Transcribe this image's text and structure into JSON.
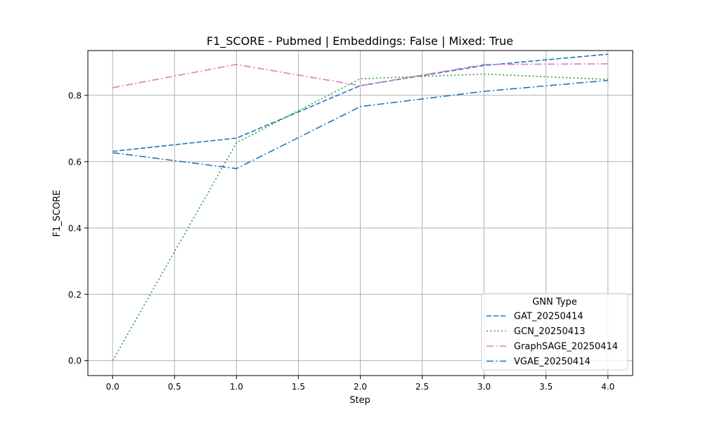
{
  "chart_data": {
    "type": "line",
    "title": "F1_SCORE - Pubmed | Embeddings: False | Mixed: True",
    "xlabel": "Step",
    "ylabel": "F1_SCORE",
    "x": [
      0,
      1,
      2,
      3,
      4
    ],
    "xlim": [
      -0.2,
      4.2
    ],
    "ylim": [
      -0.045,
      0.935
    ],
    "x_ticks": [
      0.0,
      0.5,
      1.0,
      1.5,
      2.0,
      2.5,
      3.0,
      3.5,
      4.0
    ],
    "x_tick_labels": [
      "0.0",
      "0.5",
      "1.0",
      "1.5",
      "2.0",
      "2.5",
      "3.0",
      "3.5",
      "4.0"
    ],
    "y_ticks": [
      0.0,
      0.2,
      0.4,
      0.6,
      0.8
    ],
    "y_tick_labels": [
      "0.0",
      "0.2",
      "0.4",
      "0.6",
      "0.8"
    ],
    "grid": true,
    "legend": {
      "title": "GNN Type",
      "placement": "lower-right"
    },
    "series": [
      {
        "name": "GAT_20250414",
        "values": [
          0.631,
          0.671,
          0.829,
          0.89,
          0.924
        ],
        "color": "#1f77b4",
        "style": "dashed"
      },
      {
        "name": "GCN_20250413",
        "values": [
          0.0,
          0.657,
          0.85,
          0.864,
          0.848
        ],
        "color": "#2ca02c",
        "style": "dotted"
      },
      {
        "name": "GraphSAGE_20250414",
        "values": [
          0.823,
          0.893,
          0.829,
          0.893,
          0.895
        ],
        "color": "#e377c2",
        "style": "dashdot"
      },
      {
        "name": "VGAE_20250414",
        "values": [
          0.627,
          0.579,
          0.766,
          0.812,
          0.845
        ],
        "color": "#1f77b4",
        "style": "dashdot"
      }
    ]
  }
}
